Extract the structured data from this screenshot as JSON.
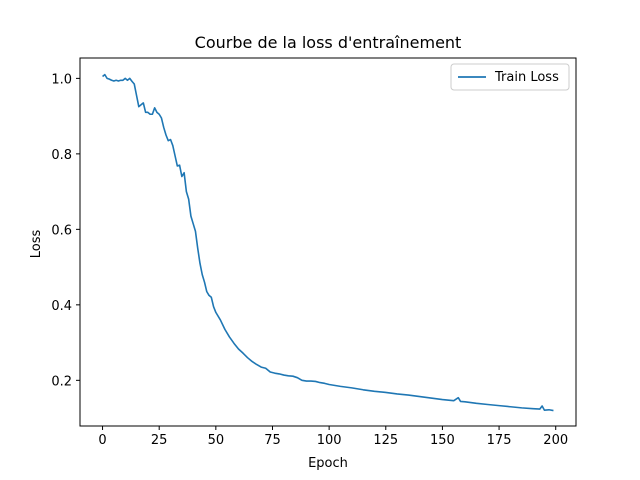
{
  "chart_data": {
    "type": "line",
    "title": "Courbe de la loss d'entraînement",
    "xlabel": "Epoch",
    "ylabel": "Loss",
    "xlim": [
      -9.95,
      208.95
    ],
    "ylim": [
      0.079,
      1.054
    ],
    "x_ticks": [
      0,
      25,
      50,
      75,
      100,
      125,
      150,
      175,
      200
    ],
    "y_ticks": [
      0.2,
      0.4,
      0.6,
      0.8,
      1.0
    ],
    "x_tick_labels": [
      "0",
      "25",
      "50",
      "75",
      "100",
      "125",
      "150",
      "175",
      "200"
    ],
    "y_tick_labels": [
      "0.2",
      "0.4",
      "0.6",
      "0.8",
      "1.0"
    ],
    "grid": false,
    "legend": {
      "position": "top-right",
      "entries": [
        "Train Loss"
      ]
    },
    "series": [
      {
        "name": "Train Loss",
        "color": "#1f77b4",
        "x": [
          0,
          1,
          2,
          3,
          4,
          5,
          6,
          7,
          8,
          9,
          10,
          11,
          12,
          13,
          14,
          15,
          16,
          17,
          18,
          19,
          20,
          21,
          22,
          23,
          24,
          25,
          26,
          27,
          28,
          29,
          30,
          31,
          32,
          33,
          34,
          35,
          36,
          37,
          38,
          39,
          40,
          41,
          42,
          43,
          44,
          45,
          46,
          47,
          48,
          49,
          50,
          52,
          54,
          56,
          58,
          60,
          62,
          64,
          66,
          68,
          70,
          72,
          74,
          76,
          78,
          80,
          82,
          84,
          86,
          88,
          90,
          92,
          94,
          96,
          98,
          100,
          105,
          110,
          115,
          120,
          125,
          130,
          135,
          140,
          145,
          150,
          155,
          157,
          158,
          160,
          165,
          170,
          175,
          180,
          185,
          190,
          193,
          194,
          195,
          197,
          199
        ],
        "y": [
          1.005,
          1.01,
          1.0,
          0.998,
          0.995,
          0.993,
          0.995,
          0.993,
          0.995,
          0.995,
          1.0,
          0.995,
          1.0,
          0.992,
          0.985,
          0.955,
          0.925,
          0.93,
          0.935,
          0.91,
          0.91,
          0.905,
          0.905,
          0.922,
          0.91,
          0.905,
          0.895,
          0.87,
          0.85,
          0.835,
          0.838,
          0.822,
          0.795,
          0.768,
          0.77,
          0.74,
          0.75,
          0.7,
          0.68,
          0.635,
          0.615,
          0.595,
          0.55,
          0.51,
          0.48,
          0.46,
          0.435,
          0.425,
          0.42,
          0.395,
          0.38,
          0.36,
          0.335,
          0.315,
          0.298,
          0.283,
          0.272,
          0.26,
          0.25,
          0.242,
          0.235,
          0.232,
          0.222,
          0.219,
          0.217,
          0.214,
          0.212,
          0.211,
          0.207,
          0.2,
          0.198,
          0.198,
          0.197,
          0.194,
          0.192,
          0.189,
          0.184,
          0.18,
          0.175,
          0.171,
          0.168,
          0.164,
          0.161,
          0.157,
          0.153,
          0.149,
          0.146,
          0.154,
          0.144,
          0.143,
          0.139,
          0.136,
          0.133,
          0.13,
          0.127,
          0.125,
          0.124,
          0.132,
          0.121,
          0.122,
          0.12
        ]
      }
    ]
  }
}
